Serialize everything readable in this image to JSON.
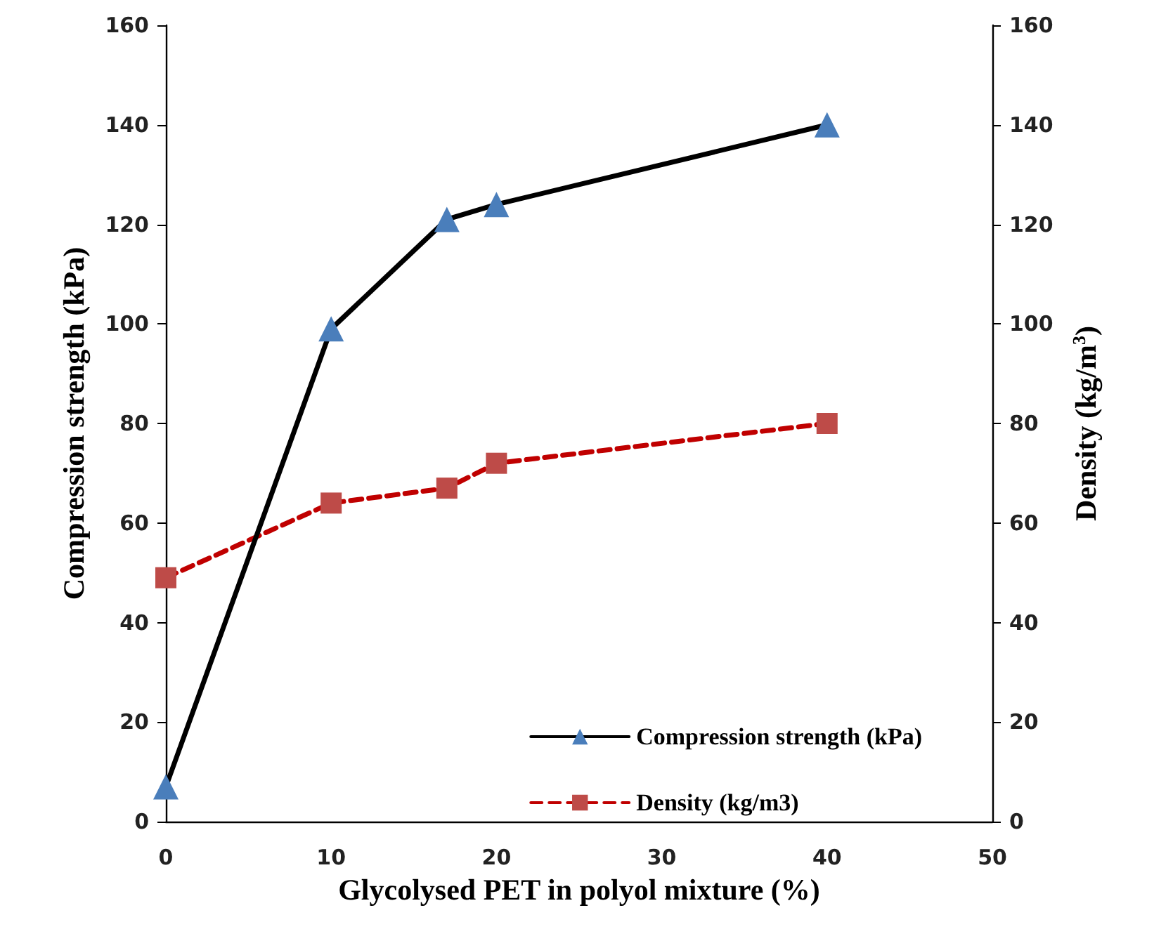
{
  "chart_data": {
    "type": "line",
    "xlabel": "Glycolysed PET in polyol mixture (%)",
    "ylabel": "Compression strength (kPa)",
    "y2label": "Density (kg/m$^{3}$)",
    "x": [
      0,
      10,
      17,
      20,
      40
    ],
    "series": [
      {
        "name": "Compression strength (kPa)",
        "color": "#000000",
        "colors": [
          "#4a7ebb",
          "#4a7ebb",
          "#4a7ebb",
          "#4a7ebb",
          "#4a7ebb"
        ],
        "marker": "triangle",
        "line_style": "solid",
        "values": [
          7,
          99,
          121,
          124,
          140
        ]
      },
      {
        "name": "Density (kg/m3)",
        "color": "#c00000",
        "colors": [
          "#be4b48",
          "#be4b48",
          "#be4b48",
          "#be4b48",
          "#be4b48"
        ],
        "marker": "square",
        "line_style": "dashed",
        "values": [
          49,
          64,
          67,
          72,
          80
        ]
      }
    ],
    "xlim": [
      0,
      50
    ],
    "xticks": [
      0,
      10,
      20,
      30,
      40,
      50
    ],
    "ylim": [
      0,
      160
    ],
    "yticks": [
      0,
      20,
      40,
      60,
      80,
      100,
      120,
      140,
      160
    ],
    "y2lim": [
      0,
      160
    ],
    "y2ticks": [
      0,
      20,
      40,
      60,
      80,
      100,
      120,
      140,
      160
    ],
    "grid": false,
    "legend": "bottom right"
  }
}
